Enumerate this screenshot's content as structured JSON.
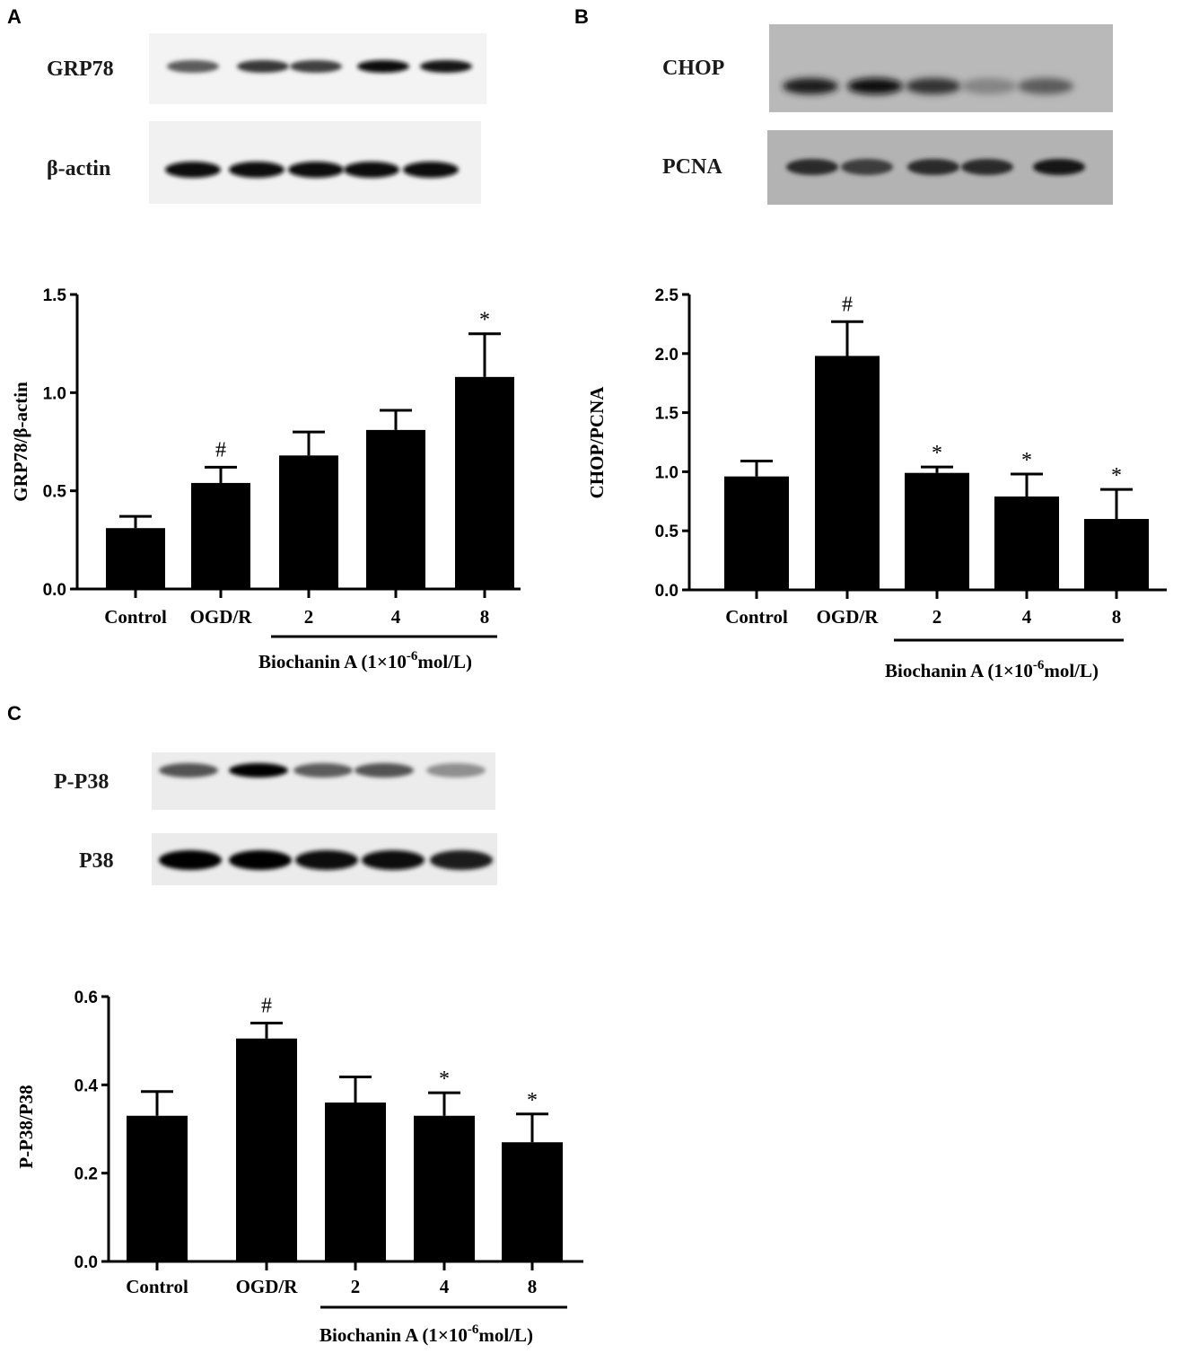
{
  "panels": [
    {
      "letter": "A",
      "blots": [
        {
          "label": "GRP78",
          "bg": "#f3f3f3",
          "intensities": [
            0.55,
            0.72,
            0.68,
            0.92,
            0.88
          ]
        },
        {
          "label": "β-actin",
          "bg": "#f1f1f1",
          "intensities": [
            0.95,
            0.95,
            0.95,
            0.95,
            0.95
          ]
        }
      ],
      "treatment": {
        "name": "Biochanin A  (1×10",
        "exp": "-6",
        "unit": "mol/L)"
      }
    },
    {
      "letter": "B",
      "blots": [
        {
          "label": "CHOP",
          "bg": "#b9b9b9",
          "intensities": [
            0.85,
            0.95,
            0.75,
            0.35,
            0.55
          ]
        },
        {
          "label": "PCNA",
          "bg": "#b3b3b3",
          "intensities": [
            0.8,
            0.7,
            0.8,
            0.8,
            0.9
          ]
        }
      ],
      "treatment": {
        "name": "Biochanin A (1×10",
        "exp": "-6",
        "unit": "mol/L)"
      }
    },
    {
      "letter": "C",
      "blots": [
        {
          "label": "P-P38",
          "bg": "#ececec",
          "intensities": [
            0.6,
            1.0,
            0.55,
            0.6,
            0.3
          ]
        },
        {
          "label": "P38",
          "bg": "#ebebeb",
          "intensities": [
            0.98,
            0.98,
            0.92,
            0.92,
            0.85
          ]
        }
      ],
      "treatment": {
        "name": "Biochanin A (1×10",
        "exp": "-6",
        "unit": "mol/L)"
      }
    }
  ],
  "chart_data": [
    {
      "type": "bar",
      "panel": "A",
      "categories": [
        "Control",
        "OGD/R",
        "2",
        "4",
        "8"
      ],
      "values": [
        0.31,
        0.54,
        0.68,
        0.81,
        1.08
      ],
      "errors": [
        0.06,
        0.08,
        0.12,
        0.1,
        0.22
      ],
      "annotations": [
        "",
        "#",
        "",
        "",
        "*"
      ],
      "ylabel": "GRP78/β-actin",
      "ylim": [
        0,
        1.5
      ],
      "yticks": [
        "0.0",
        "0.5",
        "1.0",
        "1.5"
      ],
      "yticks_values": [
        0,
        0.5,
        1.0,
        1.5
      ],
      "bar_color": "#000000"
    },
    {
      "type": "bar",
      "panel": "B",
      "categories": [
        "Control",
        "OGD/R",
        "2",
        "4",
        "8"
      ],
      "values": [
        0.96,
        1.98,
        0.99,
        0.79,
        0.6
      ],
      "errors": [
        0.13,
        0.29,
        0.05,
        0.19,
        0.25
      ],
      "annotations": [
        "",
        "#",
        "*",
        "*",
        "*"
      ],
      "ylabel": "CHOP/PCNA",
      "ylim": [
        0,
        2.5
      ],
      "yticks": [
        "0.0",
        "0.5",
        "1.0",
        "1.5",
        "2.0",
        "2.5"
      ],
      "yticks_values": [
        0,
        0.5,
        1.0,
        1.5,
        2.0,
        2.5
      ],
      "bar_color": "#000000"
    },
    {
      "type": "bar",
      "panel": "C",
      "categories": [
        "Control",
        "OGD/R",
        "2",
        "4",
        "8"
      ],
      "values": [
        0.33,
        0.505,
        0.36,
        0.33,
        0.27
      ],
      "errors": [
        0.055,
        0.035,
        0.058,
        0.052,
        0.064
      ],
      "annotations": [
        "",
        "#",
        "",
        "*",
        "*"
      ],
      "ylabel": "P-P38/P38",
      "ylim": [
        0,
        0.6
      ],
      "yticks": [
        "0.0",
        "0.2",
        "0.4",
        "0.6"
      ],
      "yticks_values": [
        0,
        0.2,
        0.4,
        0.6
      ],
      "bar_color": "#000000"
    }
  ]
}
